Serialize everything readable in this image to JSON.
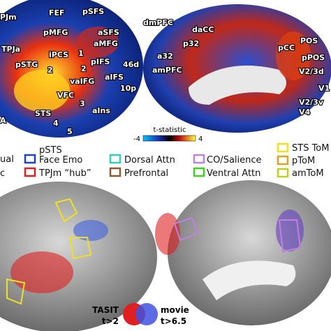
{
  "lateral_labels": [
    "FEF",
    "pSFS",
    "PJm",
    "pMFG",
    "aSFS",
    "TPJa",
    "iPCS",
    "aMFG",
    "pSTG",
    "1",
    "2",
    "2",
    "pIFS",
    "46d",
    "vaIFG",
    "aIFS",
    "10p",
    "VFC",
    "3",
    "aIns",
    "STS",
    "4",
    "5",
    "A"
  ],
  "medial_labels": [
    "dmPFC",
    "daCC",
    "p32",
    "a32",
    "amPFC",
    "pCC",
    "POS",
    "pPOS",
    "V2/3d",
    "V1",
    "V2/3v",
    "V4"
  ],
  "colorbar": {
    "label": "t-statistic",
    "min": "-4",
    "max": "4"
  },
  "legend": [
    {
      "label": "ual"
    },
    {
      "label": "c"
    },
    {
      "label": "pSTS",
      "label2": "Face Emo"
    },
    {
      "label": "TPJm “hub”"
    },
    {
      "label": "Dorsal Attn"
    },
    {
      "label": "Prefrontal"
    },
    {
      "label": "CO/Salience"
    },
    {
      "label": "Ventral Attn"
    },
    {
      "label": "STS ToM"
    },
    {
      "label": "pToM"
    },
    {
      "label": "amToM"
    }
  ],
  "overlap_legend": {
    "left": "TASIT",
    "left_threshold": "t>2",
    "right": "movie",
    "right_threshold": "t>6.5"
  }
}
